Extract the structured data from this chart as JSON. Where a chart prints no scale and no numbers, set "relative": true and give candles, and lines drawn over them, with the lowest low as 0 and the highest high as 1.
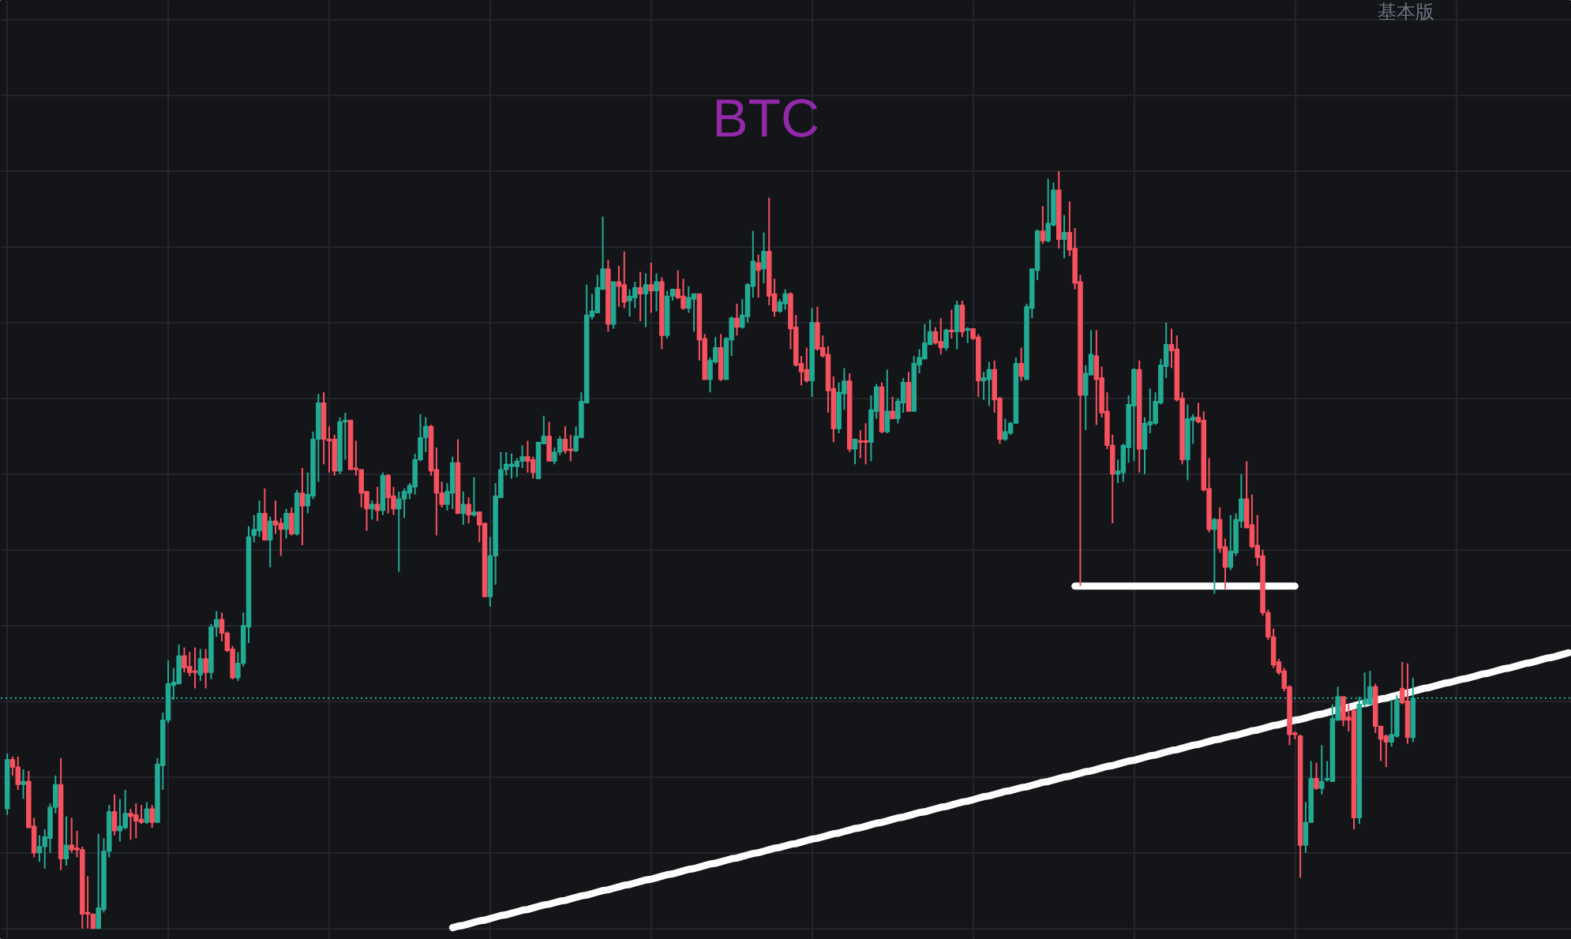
{
  "chart_data": {
    "type": "candlestick",
    "title": "BTC",
    "relative": true,
    "grid": true,
    "annotations": [
      "基本版"
    ],
    "categories": [
      null,
      null,
      null,
      null,
      null,
      null,
      null,
      null,
      null,
      null,
      null,
      null,
      null,
      null,
      null,
      null,
      null,
      null,
      null,
      null,
      null,
      null,
      null,
      null,
      null,
      null,
      null,
      null,
      null,
      null,
      null,
      null,
      null,
      null,
      null,
      null,
      null,
      null,
      null,
      null,
      null,
      null,
      null,
      null,
      null,
      null,
      null,
      null,
      null,
      null,
      null,
      null,
      null,
      null,
      null,
      null,
      null,
      null,
      null,
      null,
      null,
      null,
      null,
      null,
      null,
      null,
      null,
      null,
      null,
      null,
      null,
      null,
      null,
      null,
      null,
      null,
      null,
      null,
      null,
      null,
      null,
      null,
      null,
      null,
      null,
      null,
      null,
      null,
      null,
      null,
      null,
      null,
      null,
      null,
      null,
      null,
      null,
      null,
      null,
      null,
      null,
      null,
      null,
      null,
      null,
      null,
      null,
      null,
      null,
      null,
      null,
      null,
      null,
      null,
      null,
      null,
      null,
      null,
      null,
      null,
      null,
      null,
      null,
      null,
      null,
      null,
      null,
      null,
      null,
      null,
      null,
      null,
      null,
      null,
      null,
      null,
      null,
      null,
      null,
      null,
      null,
      null,
      null,
      null,
      null,
      null,
      null,
      null,
      null,
      null,
      null,
      null,
      null,
      null,
      null,
      null,
      null,
      null,
      null,
      null,
      null,
      null,
      null,
      null,
      null,
      null,
      null,
      null,
      null,
      null,
      null,
      null,
      null,
      null,
      null,
      null,
      null,
      null,
      null,
      null,
      null,
      null,
      null,
      null,
      null,
      null,
      null,
      null,
      null,
      null,
      null,
      null,
      null,
      null,
      null,
      null,
      null,
      null,
      null,
      null,
      null,
      null,
      null,
      null,
      null,
      null,
      null,
      null,
      null,
      null,
      null,
      null,
      null,
      null,
      null,
      null,
      null,
      null,
      null,
      null,
      null,
      null,
      null,
      null,
      null,
      null,
      null,
      null,
      null,
      null,
      null,
      null,
      null,
      null,
      null,
      null,
      null,
      null,
      null,
      null,
      null,
      null,
      null,
      null,
      null,
      null,
      null,
      null,
      null,
      null,
      null,
      null,
      null,
      null,
      null,
      null,
      null,
      null,
      null,
      null,
      null,
      null,
      null,
      null,
      null,
      null,
      null,
      null,
      null,
      null,
      null,
      null,
      null,
      null,
      null,
      null,
      null,
      null,
      null,
      null,
      null,
      null,
      null,
      null,
      null,
      null,
      null,
      null,
      null,
      null,
      null,
      null
    ],
    "ohlc": [
      [
        0.158,
        0.231,
        0.15,
        0.223
      ],
      [
        0.223,
        0.227,
        0.202,
        0.213
      ],
      [
        0.213,
        0.227,
        0.183,
        0.19
      ],
      [
        0.19,
        0.21,
        0.171,
        0.194
      ],
      [
        0.194,
        0.208,
        0.133,
        0.133
      ],
      [
        0.135,
        0.146,
        0.094,
        0.1
      ],
      [
        0.1,
        0.123,
        0.088,
        0.108
      ],
      [
        0.108,
        0.131,
        0.079,
        0.121
      ],
      [
        0.119,
        0.165,
        0.1,
        0.16
      ],
      [
        0.16,
        0.202,
        0.152,
        0.19
      ],
      [
        0.19,
        0.225,
        0.077,
        0.092
      ],
      [
        0.092,
        0.148,
        0.083,
        0.11
      ],
      [
        0.11,
        0.146,
        0.1,
        0.104
      ],
      [
        0.106,
        0.129,
        0.094,
        0.104
      ],
      [
        0.104,
        0.108,
        0,
        0.019
      ],
      [
        0.021,
        0.069,
        0,
        0.019
      ],
      [
        0.019,
        0.019,
        0,
        0
      ],
      [
        0,
        0.125,
        0,
        0.027
      ],
      [
        0.025,
        0.119,
        0.021,
        0.102
      ],
      [
        0.102,
        0.163,
        0.094,
        0.154
      ],
      [
        0.154,
        0.177,
        0.123,
        0.129
      ],
      [
        0.129,
        0.171,
        0.115,
        0.135
      ],
      [
        0.133,
        0.183,
        0.131,
        0.152
      ],
      [
        0.152,
        0.158,
        0.117,
        0.148
      ],
      [
        0.15,
        0.165,
        0.119,
        0.142
      ],
      [
        0.144,
        0.163,
        0.138,
        0.14
      ],
      [
        0.14,
        0.167,
        0.138,
        0.158
      ],
      [
        0.158,
        0.163,
        0.133,
        0.14
      ],
      [
        0.14,
        0.225,
        0.14,
        0.217
      ],
      [
        0.215,
        0.285,
        0.183,
        0.275
      ],
      [
        0.275,
        0.354,
        0.271,
        0.323
      ],
      [
        0.321,
        0.344,
        0.302,
        0.325
      ],
      [
        0.323,
        0.375,
        0.323,
        0.36
      ],
      [
        0.36,
        0.371,
        0.338,
        0.344
      ],
      [
        0.346,
        0.365,
        0.333,
        0.338
      ],
      [
        0.34,
        0.371,
        0.317,
        0.338
      ],
      [
        0.335,
        0.369,
        0.327,
        0.356
      ],
      [
        0.356,
        0.369,
        0.317,
        0.338
      ],
      [
        0.338,
        0.402,
        0.329,
        0.398
      ],
      [
        0.398,
        0.419,
        0.385,
        0.408
      ],
      [
        0.408,
        0.417,
        0.379,
        0.39
      ],
      [
        0.39,
        0.392,
        0.365,
        0.367
      ],
      [
        0.369,
        0.373,
        0.329,
        0.331
      ],
      [
        0.331,
        0.365,
        0.327,
        0.35
      ],
      [
        0.35,
        0.417,
        0.346,
        0.4
      ],
      [
        0.398,
        0.531,
        0.377,
        0.517
      ],
      [
        0.519,
        0.546,
        0.51,
        0.527
      ],
      [
        0.525,
        0.565,
        0.517,
        0.548
      ],
      [
        0.548,
        0.581,
        0.513,
        0.513
      ],
      [
        0.513,
        0.544,
        0.477,
        0.538
      ],
      [
        0.538,
        0.565,
        0.521,
        0.533
      ],
      [
        0.535,
        0.542,
        0.492,
        0.527
      ],
      [
        0.527,
        0.554,
        0.515,
        0.548
      ],
      [
        0.548,
        0.556,
        0.519,
        0.521
      ],
      [
        0.521,
        0.579,
        0.519,
        0.575
      ],
      [
        0.575,
        0.608,
        0.506,
        0.558
      ],
      [
        0.558,
        0.602,
        0.548,
        0.573
      ],
      [
        0.571,
        0.656,
        0.567,
        0.646
      ],
      [
        0.646,
        0.706,
        0.59,
        0.694
      ],
      [
        0.694,
        0.708,
        0.613,
        0.646
      ],
      [
        0.646,
        0.663,
        0.602,
        0.644
      ],
      [
        0.646,
        0.652,
        0.598,
        0.604
      ],
      [
        0.604,
        0.675,
        0.6,
        0.669
      ],
      [
        0.669,
        0.681,
        0.619,
        0.671
      ],
      [
        0.671,
        0.671,
        0.606,
        0.606
      ],
      [
        0.608,
        0.644,
        0.598,
        0.606
      ],
      [
        0.606,
        0.606,
        0.556,
        0.575
      ],
      [
        0.577,
        0.577,
        0.525,
        0.554
      ],
      [
        0.554,
        0.565,
        0.54,
        0.56
      ],
      [
        0.56,
        0.583,
        0.538,
        0.552
      ],
      [
        0.552,
        0.602,
        0.546,
        0.598
      ],
      [
        0.598,
        0.6,
        0.548,
        0.569
      ],
      [
        0.571,
        0.583,
        0.546,
        0.554
      ],
      [
        0.554,
        0.577,
        0.471,
        0.567
      ],
      [
        0.567,
        0.581,
        0.542,
        0.577
      ],
      [
        0.575,
        0.588,
        0.567,
        0.585
      ],
      [
        0.583,
        0.627,
        0.573,
        0.619
      ],
      [
        0.619,
        0.679,
        0.617,
        0.648
      ],
      [
        0.648,
        0.675,
        0.629,
        0.663
      ],
      [
        0.663,
        0.665,
        0.598,
        0.604
      ],
      [
        0.606,
        0.635,
        0.519,
        0.575
      ],
      [
        0.575,
        0.59,
        0.556,
        0.56
      ],
      [
        0.56,
        0.588,
        0.552,
        0.577
      ],
      [
        0.575,
        0.623,
        0.554,
        0.615
      ],
      [
        0.615,
        0.646,
        0.548,
        0.548
      ],
      [
        0.548,
        0.577,
        0.533,
        0.56
      ],
      [
        0.56,
        0.569,
        0.535,
        0.546
      ],
      [
        0.546,
        0.596,
        0.544,
        0.55
      ],
      [
        0.55,
        0.55,
        0.51,
        0.533
      ],
      [
        0.535,
        0.535,
        0.438,
        0.438
      ],
      [
        0.438,
        0.517,
        0.425,
        0.492
      ],
      [
        0.492,
        0.588,
        0.454,
        0.571
      ],
      [
        0.569,
        0.629,
        0.569,
        0.606
      ],
      [
        0.606,
        0.629,
        0.598,
        0.613
      ],
      [
        0.61,
        0.627,
        0.594,
        0.613
      ],
      [
        0.61,
        0.621,
        0.596,
        0.617
      ],
      [
        0.617,
        0.638,
        0.608,
        0.623
      ],
      [
        0.623,
        0.644,
        0.602,
        0.617
      ],
      [
        0.619,
        0.623,
        0.594,
        0.602
      ],
      [
        0.594,
        0.642,
        0.594,
        0.642
      ],
      [
        0.64,
        0.677,
        0.64,
        0.65
      ],
      [
        0.65,
        0.669,
        0.617,
        0.617
      ],
      [
        0.617,
        0.635,
        0.613,
        0.629
      ],
      [
        0.629,
        0.65,
        0.625,
        0.646
      ],
      [
        0.646,
        0.663,
        0.627,
        0.631
      ],
      [
        0.633,
        0.652,
        0.617,
        0.631
      ],
      [
        0.631,
        0.663,
        0.629,
        0.65
      ],
      [
        0.648,
        0.708,
        0.648,
        0.696
      ],
      [
        0.694,
        0.85,
        0.694,
        0.81
      ],
      [
        0.808,
        0.838,
        0.804,
        0.815
      ],
      [
        0.813,
        0.863,
        0.813,
        0.846
      ],
      [
        0.844,
        0.94,
        0.844,
        0.871
      ],
      [
        0.871,
        0.883,
        0.788,
        0.798
      ],
      [
        0.798,
        0.854,
        0.792,
        0.854
      ],
      [
        0.854,
        0.875,
        0.821,
        0.848
      ],
      [
        0.85,
        0.894,
        0.819,
        0.827
      ],
      [
        0.829,
        0.844,
        0.808,
        0.835
      ],
      [
        0.833,
        0.854,
        0.819,
        0.846
      ],
      [
        0.846,
        0.867,
        0.802,
        0.838
      ],
      [
        0.838,
        0.865,
        0.794,
        0.85
      ],
      [
        0.85,
        0.879,
        0.813,
        0.842
      ],
      [
        0.842,
        0.865,
        0.815,
        0.854
      ],
      [
        0.854,
        0.86,
        0.765,
        0.783
      ],
      [
        0.783,
        0.842,
        0.779,
        0.835
      ],
      [
        0.835,
        0.844,
        0.829,
        0.844
      ],
      [
        0.844,
        0.869,
        0.831,
        0.833
      ],
      [
        0.835,
        0.858,
        0.817,
        0.819
      ],
      [
        0.819,
        0.848,
        0.813,
        0.833
      ],
      [
        0.831,
        0.838,
        0.788,
        0.838
      ],
      [
        0.838,
        0.838,
        0.75,
        0.777
      ],
      [
        0.779,
        0.785,
        0.725,
        0.725
      ],
      [
        0.725,
        0.754,
        0.708,
        0.75
      ],
      [
        0.748,
        0.781,
        0.746,
        0.767
      ],
      [
        0.767,
        0.785,
        0.723,
        0.725
      ],
      [
        0.725,
        0.781,
        0.725,
        0.779
      ],
      [
        0.777,
        0.808,
        0.756,
        0.806
      ],
      [
        0.806,
        0.825,
        0.783,
        0.794
      ],
      [
        0.794,
        0.831,
        0.792,
        0.81
      ],
      [
        0.808,
        0.852,
        0.8,
        0.85
      ],
      [
        0.848,
        0.921,
        0.833,
        0.881
      ],
      [
        0.879,
        0.89,
        0.833,
        0.869
      ],
      [
        0.871,
        0.919,
        0.852,
        0.894
      ],
      [
        0.894,
        0.965,
        0.823,
        0.835
      ],
      [
        0.838,
        0.858,
        0.808,
        0.815
      ],
      [
        0.815,
        0.831,
        0.813,
        0.827
      ],
      [
        0.825,
        0.844,
        0.817,
        0.838
      ],
      [
        0.838,
        0.84,
        0.765,
        0.792
      ],
      [
        0.794,
        0.81,
        0.742,
        0.744
      ],
      [
        0.746,
        0.756,
        0.717,
        0.735
      ],
      [
        0.738,
        0.767,
        0.721,
        0.723
      ],
      [
        0.723,
        0.819,
        0.702,
        0.8
      ],
      [
        0.8,
        0.821,
        0.763,
        0.765
      ],
      [
        0.767,
        0.783,
        0.754,
        0.756
      ],
      [
        0.758,
        0.769,
        0.681,
        0.71
      ],
      [
        0.713,
        0.729,
        0.642,
        0.66
      ],
      [
        0.66,
        0.721,
        0.654,
        0.708
      ],
      [
        0.706,
        0.74,
        0.685,
        0.723
      ],
      [
        0.723,
        0.733,
        0.629,
        0.633
      ],
      [
        0.633,
        0.646,
        0.613,
        0.646
      ],
      [
        0.644,
        0.658,
        0.621,
        0.642
      ],
      [
        0.644,
        0.667,
        0.613,
        0.642
      ],
      [
        0.642,
        0.704,
        0.617,
        0.685
      ],
      [
        0.683,
        0.719,
        0.673,
        0.715
      ],
      [
        0.715,
        0.721,
        0.654,
        0.656
      ],
      [
        0.656,
        0.738,
        0.654,
        0.683
      ],
      [
        0.683,
        0.702,
        0.673,
        0.673
      ],
      [
        0.673,
        0.7,
        0.667,
        0.696
      ],
      [
        0.694,
        0.727,
        0.681,
        0.721
      ],
      [
        0.721,
        0.735,
        0.683,
        0.683
      ],
      [
        0.683,
        0.756,
        0.683,
        0.746
      ],
      [
        0.744,
        0.765,
        0.733,
        0.754
      ],
      [
        0.752,
        0.798,
        0.752,
        0.773
      ],
      [
        0.771,
        0.804,
        0.771,
        0.788
      ],
      [
        0.788,
        0.794,
        0.771,
        0.773
      ],
      [
        0.775,
        0.806,
        0.758,
        0.767
      ],
      [
        0.767,
        0.792,
        0.763,
        0.79
      ],
      [
        0.79,
        0.817,
        0.779,
        0.788
      ],
      [
        0.788,
        0.829,
        0.765,
        0.823
      ],
      [
        0.823,
        0.829,
        0.781,
        0.788
      ],
      [
        0.79,
        0.794,
        0.773,
        0.792
      ],
      [
        0.792,
        0.792,
        0.777,
        0.779
      ],
      [
        0.781,
        0.785,
        0.702,
        0.723
      ],
      [
        0.723,
        0.735,
        0.698,
        0.727
      ],
      [
        0.725,
        0.748,
        0.69,
        0.738
      ],
      [
        0.738,
        0.75,
        0.681,
        0.698
      ],
      [
        0.7,
        0.702,
        0.64,
        0.646
      ],
      [
        0.646,
        0.673,
        0.644,
        0.656
      ],
      [
        0.654,
        0.669,
        0.652,
        0.667
      ],
      [
        0.667,
        0.754,
        0.667,
        0.746
      ],
      [
        0.746,
        0.767,
        0.723,
        0.729
      ],
      [
        0.725,
        0.825,
        0.725,
        0.821
      ],
      [
        0.819,
        0.871,
        0.806,
        0.871
      ],
      [
        0.869,
        0.923,
        0.856,
        0.921
      ],
      [
        0.921,
        0.954,
        0.904,
        0.908
      ],
      [
        0.908,
        0.99,
        0.906,
        0.931
      ],
      [
        0.929,
        0.985,
        0.927,
        0.975
      ],
      [
        0.975,
        1,
        0.898,
        0.91
      ],
      [
        0.91,
        0.942,
        0.885,
        0.919
      ],
      [
        0.919,
        0.96,
        0.888,
        0.896
      ],
      [
        0.898,
        0.925,
        0.844,
        0.852
      ],
      [
        0.854,
        0.863,
        0.452,
        0.704
      ],
      [
        0.704,
        0.744,
        0.658,
        0.733
      ],
      [
        0.731,
        0.79,
        0.731,
        0.758
      ],
      [
        0.756,
        0.79,
        0.665,
        0.725
      ],
      [
        0.727,
        0.742,
        0.675,
        0.681
      ],
      [
        0.683,
        0.708,
        0.633,
        0.638
      ],
      [
        0.638,
        0.652,
        0.535,
        0.6
      ],
      [
        0.6,
        0.619,
        0.588,
        0.604
      ],
      [
        0.602,
        0.64,
        0.59,
        0.638
      ],
      [
        0.635,
        0.704,
        0.615,
        0.692
      ],
      [
        0.69,
        0.74,
        0.617,
        0.738
      ],
      [
        0.738,
        0.75,
        0.602,
        0.633
      ],
      [
        0.633,
        0.675,
        0.6,
        0.667
      ],
      [
        0.665,
        0.713,
        0.654,
        0.669
      ],
      [
        0.667,
        0.708,
        0.665,
        0.696
      ],
      [
        0.694,
        0.752,
        0.692,
        0.744
      ],
      [
        0.742,
        0.8,
        0.727,
        0.771
      ],
      [
        0.771,
        0.792,
        0.74,
        0.763
      ],
      [
        0.765,
        0.783,
        0.696,
        0.698
      ],
      [
        0.7,
        0.708,
        0.613,
        0.619
      ],
      [
        0.619,
        0.692,
        0.592,
        0.673
      ],
      [
        0.671,
        0.679,
        0.64,
        0.675
      ],
      [
        0.675,
        0.694,
        0.667,
        0.669
      ],
      [
        0.671,
        0.683,
        0.577,
        0.579
      ],
      [
        0.581,
        0.621,
        0.523,
        0.527
      ],
      [
        0.527,
        0.542,
        0.442,
        0.54
      ],
      [
        0.54,
        0.556,
        0.496,
        0.502
      ],
      [
        0.504,
        0.515,
        0.448,
        0.477
      ],
      [
        0.477,
        0.546,
        0.473,
        0.498
      ],
      [
        0.496,
        0.548,
        0.492,
        0.54
      ],
      [
        0.538,
        0.6,
        0.529,
        0.567
      ],
      [
        0.567,
        0.617,
        0.529,
        0.529
      ],
      [
        0.533,
        0.573,
        0.502,
        0.504
      ],
      [
        0.506,
        0.546,
        0.479,
        0.49
      ],
      [
        0.492,
        0.5,
        0.413,
        0.417
      ],
      [
        0.417,
        0.421,
        0.381,
        0.385
      ],
      [
        0.385,
        0.396,
        0.344,
        0.348
      ],
      [
        0.352,
        0.356,
        0.335,
        0.338
      ],
      [
        0.34,
        0.344,
        0.313,
        0.317
      ],
      [
        0.319,
        0.321,
        0.242,
        0.256
      ],
      [
        0.258,
        0.26,
        0.25,
        0.256
      ],
      [
        0.254,
        0.256,
        0.067,
        0.11
      ],
      [
        0.11,
        0.167,
        0.1,
        0.14
      ],
      [
        0.14,
        0.221,
        0.14,
        0.198
      ],
      [
        0.198,
        0.219,
        0.183,
        0.185
      ],
      [
        0.185,
        0.242,
        0.177,
        0.194
      ],
      [
        0.196,
        0.221,
        0.194,
        0.198
      ],
      [
        0.194,
        0.296,
        0.194,
        0.277
      ],
      [
        0.275,
        0.319,
        0.275,
        0.306
      ],
      [
        0.306,
        0.306,
        0.267,
        0.275
      ],
      [
        0.279,
        0.296,
        0.26,
        0.275
      ],
      [
        0.288,
        0.288,
        0.131,
        0.146
      ],
      [
        0.146,
        0.306,
        0.138,
        0.296
      ],
      [
        0.296,
        0.338,
        0.292,
        0.302
      ],
      [
        0.296,
        0.34,
        0.296,
        0.319
      ],
      [
        0.319,
        0.323,
        0.258,
        0.267
      ],
      [
        0.267,
        0.267,
        0.221,
        0.25
      ],
      [
        0.254,
        0.256,
        0.213,
        0.246
      ],
      [
        0.246,
        0.302,
        0.24,
        0.256
      ],
      [
        0.254,
        0.308,
        0.252,
        0.302
      ],
      [
        0.317,
        0.352,
        0.296,
        0.298
      ],
      [
        0.3,
        0.35,
        0.244,
        0.252
      ],
      [
        0.252,
        0.331,
        0.246,
        0.304
      ],
      null,
      null,
      null,
      null,
      null,
      null,
      null,
      null,
      null,
      null,
      null,
      null,
      null,
      null,
      null,
      null,
      null,
      null,
      null,
      null,
      null,
      null,
      null,
      null,
      null,
      null,
      null,
      null,
      null
    ],
    "colors": [
      "#22ab94",
      "#f7525f",
      "#f7525f",
      "#22ab94",
      "#f7525f",
      "#f7525f",
      "#22ab94",
      "#22ab94",
      "#22ab94",
      "#22ab94",
      "#f7525f",
      "#22ab94",
      "#f7525f",
      "#f7525f",
      "#f7525f",
      "#f7525f",
      "#f7525f",
      "#22ab94",
      "#22ab94",
      "#22ab94",
      "#f7525f",
      "#22ab94",
      "#22ab94",
      "#f7525f",
      "#f7525f",
      "#f7525f",
      "#22ab94",
      "#f7525f",
      "#22ab94",
      "#22ab94",
      "#22ab94",
      "#22ab94",
      "#22ab94",
      "#f7525f",
      "#f7525f",
      "#f7525f",
      "#22ab94",
      "#f7525f",
      "#22ab94",
      "#22ab94",
      "#f7525f",
      "#f7525f",
      "#f7525f",
      "#22ab94",
      "#22ab94",
      "#22ab94",
      "#22ab94",
      "#22ab94",
      "#f7525f",
      "#22ab94",
      "#f7525f",
      "#f7525f",
      "#22ab94",
      "#f7525f",
      "#22ab94",
      "#f7525f",
      "#22ab94",
      "#22ab94",
      "#22ab94",
      "#f7525f",
      "#f7525f",
      "#f7525f",
      "#22ab94",
      "#22ab94",
      "#f7525f",
      "#f7525f",
      "#f7525f",
      "#f7525f",
      "#22ab94",
      "#f7525f",
      "#22ab94",
      "#f7525f",
      "#f7525f",
      "#22ab94",
      "#22ab94",
      "#22ab94",
      "#22ab94",
      "#22ab94",
      "#22ab94",
      "#f7525f",
      "#f7525f",
      "#f7525f",
      "#22ab94",
      "#22ab94",
      "#f7525f",
      "#22ab94",
      "#f7525f",
      "#22ab94",
      "#f7525f",
      "#f7525f",
      "#22ab94",
      "#22ab94",
      "#22ab94",
      "#22ab94",
      "#22ab94",
      "#22ab94",
      "#22ab94",
      "#f7525f",
      "#f7525f",
      "#22ab94",
      "#22ab94",
      "#f7525f",
      "#22ab94",
      "#22ab94",
      "#f7525f",
      "#f7525f",
      "#22ab94",
      "#22ab94",
      "#22ab94",
      "#22ab94",
      "#22ab94",
      "#22ab94",
      "#f7525f",
      "#22ab94",
      "#f7525f",
      "#f7525f",
      "#22ab94",
      "#22ab94",
      "#f7525f",
      "#22ab94",
      "#f7525f",
      "#22ab94",
      "#f7525f",
      "#22ab94",
      "#22ab94",
      "#f7525f",
      "#f7525f",
      "#22ab94",
      "#22ab94",
      "#f7525f",
      "#f7525f",
      "#22ab94",
      "#22ab94",
      "#f7525f",
      "#22ab94",
      "#22ab94",
      "#f7525f",
      "#22ab94",
      "#22ab94",
      "#22ab94",
      "#f7525f",
      "#22ab94",
      "#f7525f",
      "#f7525f",
      "#22ab94",
      "#22ab94",
      "#f7525f",
      "#f7525f",
      "#f7525f",
      "#f7525f",
      "#22ab94",
      "#f7525f",
      "#f7525f",
      "#f7525f",
      "#f7525f",
      "#22ab94",
      "#22ab94",
      "#f7525f",
      "#22ab94",
      "#f7525f",
      "#f7525f",
      "#22ab94",
      "#22ab94",
      "#f7525f",
      "#22ab94",
      "#f7525f",
      "#22ab94",
      "#22ab94",
      "#f7525f",
      "#22ab94",
      "#22ab94",
      "#22ab94",
      "#22ab94",
      "#f7525f",
      "#f7525f",
      "#22ab94",
      "#f7525f",
      "#22ab94",
      "#f7525f",
      "#22ab94",
      "#f7525f",
      "#f7525f",
      "#22ab94",
      "#22ab94",
      "#f7525f",
      "#f7525f",
      "#22ab94",
      "#22ab94",
      "#22ab94",
      "#f7525f",
      "#22ab94",
      "#22ab94",
      "#22ab94",
      "#f7525f",
      "#22ab94",
      "#22ab94",
      "#f7525f",
      "#22ab94",
      "#f7525f",
      "#f7525f",
      "#f7525f",
      "#22ab94",
      "#22ab94",
      "#f7525f",
      "#f7525f",
      "#f7525f",
      "#f7525f",
      "#22ab94",
      "#22ab94",
      "#22ab94",
      "#22ab94",
      "#f7525f",
      "#22ab94",
      "#22ab94",
      "#22ab94",
      "#22ab94",
      "#22ab94",
      "#f7525f",
      "#f7525f",
      "#f7525f",
      "#22ab94",
      "#22ab94",
      "#f7525f",
      "#f7525f",
      "#f7525f",
      "#22ab94",
      "#f7525f",
      "#f7525f",
      "#22ab94",
      "#22ab94",
      "#22ab94",
      "#f7525f",
      "#f7525f",
      "#f7525f",
      "#f7525f",
      "#f7525f",
      "#f7525f",
      "#f7525f",
      "#f7525f",
      "#f7525f",
      "#f7525f",
      "#f7525f",
      "#22ab94",
      "#22ab94",
      "#f7525f",
      "#22ab94",
      "#22ab94",
      "#22ab94",
      "#22ab94",
      "#f7525f",
      "#f7525f",
      "#f7525f",
      "#22ab94",
      "#22ab94",
      "#22ab94",
      "#f7525f",
      "#f7525f",
      "#f7525f",
      "#22ab94",
      "#22ab94",
      "#f7525f",
      "#f7525f",
      "#22ab94",
      null,
      null,
      null,
      null,
      null,
      null,
      null,
      null,
      null,
      null,
      null,
      null,
      null,
      null,
      null,
      null,
      null,
      null,
      null,
      null,
      null,
      null,
      null,
      null,
      null,
      null,
      null,
      null,
      null
    ],
    "series": [
      {
        "type": "line",
        "color": "#ffffff",
        "values": [
          null,
          null,
          null,
          null,
          null,
          null,
          null,
          null,
          null,
          null,
          null,
          null,
          null,
          null,
          null,
          null,
          null,
          null,
          null,
          null,
          null,
          null,
          null,
          null,
          null,
          null,
          null,
          null,
          null,
          null,
          null,
          null,
          null,
          null,
          null,
          null,
          null,
          null,
          null,
          null,
          null,
          null,
          null,
          null,
          null,
          null,
          null,
          null,
          null,
          null,
          null,
          null,
          null,
          null,
          null,
          null,
          null,
          null,
          null,
          null,
          null,
          null,
          null,
          null,
          null,
          null,
          null,
          null,
          null,
          null,
          null,
          null,
          null,
          null,
          null,
          null,
          null,
          null,
          null,
          null,
          null,
          null,
          null,
          0.001,
          0.003,
          0.004,
          0.006,
          0.008,
          0.01,
          0.011,
          0.013,
          0.015,
          0.017,
          0.018,
          0.02,
          0.022,
          0.024,
          0.025,
          0.027,
          0.029,
          0.031,
          0.032,
          0.034,
          0.036,
          0.037,
          0.039,
          0.041,
          0.043,
          0.044,
          0.046,
          0.048,
          0.05,
          0.051,
          0.053,
          0.055,
          0.057,
          0.058,
          0.06,
          0.062,
          0.064,
          0.065,
          0.067,
          0.069,
          0.071,
          0.072,
          0.074,
          0.076,
          0.078,
          0.079,
          0.081,
          0.083,
          0.085,
          0.086,
          0.088,
          0.09,
          0.092,
          0.093,
          0.095,
          0.097,
          0.099,
          0.1,
          0.102,
          0.104,
          0.106,
          0.107,
          0.109,
          0.111,
          0.112,
          0.114,
          0.116,
          0.118,
          0.119,
          0.121,
          0.123,
          0.125,
          0.126,
          0.128,
          0.13,
          0.132,
          0.133,
          0.135,
          0.137,
          0.139,
          0.14,
          0.142,
          0.144,
          0.146,
          0.147,
          0.149,
          0.151,
          0.153,
          0.154,
          0.156,
          0.158,
          0.16,
          0.161,
          0.163,
          0.165,
          0.167,
          0.168,
          0.17,
          0.172,
          0.174,
          0.175,
          0.177,
          0.179,
          0.181,
          0.182,
          0.184,
          0.186,
          0.187,
          0.189,
          0.191,
          0.193,
          0.194,
          0.196,
          0.198,
          0.2,
          0.201,
          0.203,
          0.205,
          0.207,
          0.208,
          0.21,
          0.212,
          0.214,
          0.215,
          0.217,
          0.219,
          0.221,
          0.222,
          0.224,
          0.226,
          0.228,
          0.229,
          0.231,
          0.233,
          0.235,
          0.236,
          0.238,
          0.24,
          0.242,
          0.243,
          0.245,
          0.247,
          0.249,
          0.25,
          0.252,
          0.254,
          0.255,
          0.257,
          0.259,
          0.261,
          0.262,
          0.264,
          0.266,
          0.268,
          0.269,
          0.271,
          0.273,
          0.275,
          0.276,
          0.278,
          0.28,
          0.282,
          0.283,
          0.285,
          0.287,
          0.289,
          0.29,
          0.292,
          0.294,
          0.296,
          0.297,
          0.299,
          0.301,
          0.303,
          0.304,
          0.306,
          0.308,
          0.31,
          0.311,
          0.313,
          0.315,
          0.317,
          0.318,
          0.32,
          0.322,
          0.324,
          0.325,
          0.327,
          0.329,
          0.33,
          0.332,
          0.334,
          0.336,
          0.337,
          0.339,
          0.341,
          0.343,
          0.344,
          0.346,
          0.348,
          0.35,
          0.351,
          0.353,
          0.355,
          0.357,
          0.358,
          0.36,
          0.362,
          0.364
        ]
      },
      {
        "type": "line",
        "color": "#ffffff",
        "values": [
          null,
          null,
          null,
          null,
          null,
          null,
          null,
          null,
          null,
          null,
          null,
          null,
          null,
          null,
          null,
          null,
          null,
          null,
          null,
          null,
          null,
          null,
          null,
          null,
          null,
          null,
          null,
          null,
          null,
          null,
          null,
          null,
          null,
          null,
          null,
          null,
          null,
          null,
          null,
          null,
          null,
          null,
          null,
          null,
          null,
          null,
          null,
          null,
          null,
          null,
          null,
          null,
          null,
          null,
          null,
          null,
          null,
          null,
          null,
          null,
          null,
          null,
          null,
          null,
          null,
          null,
          null,
          null,
          null,
          null,
          null,
          null,
          null,
          null,
          null,
          null,
          null,
          null,
          null,
          null,
          null,
          null,
          null,
          null,
          null,
          null,
          null,
          null,
          null,
          null,
          null,
          null,
          null,
          null,
          null,
          null,
          null,
          null,
          null,
          null,
          null,
          null,
          null,
          null,
          null,
          null,
          null,
          null,
          null,
          null,
          null,
          null,
          null,
          null,
          null,
          null,
          null,
          null,
          null,
          null,
          null,
          null,
          null,
          null,
          null,
          null,
          null,
          null,
          null,
          null,
          null,
          null,
          null,
          null,
          null,
          null,
          null,
          null,
          null,
          null,
          null,
          null,
          null,
          null,
          null,
          null,
          null,
          null,
          null,
          null,
          null,
          null,
          null,
          null,
          null,
          null,
          null,
          null,
          null,
          null,
          null,
          null,
          null,
          null,
          null,
          null,
          null,
          null,
          null,
          null,
          null,
          null,
          null,
          null,
          null,
          null,
          null,
          null,
          null,
          null,
          null,
          null,
          null,
          null,
          null,
          null,
          null,
          null,
          null,
          null,
          null,
          null,
          null,
          null,
          null,
          null,
          null,
          null,
          null,
          0.452,
          0.452,
          0.452,
          0.452,
          0.452,
          0.452,
          0.452,
          0.452,
          0.452,
          0.452,
          0.452,
          0.452,
          0.452,
          0.452,
          0.452,
          0.452,
          0.452,
          0.452,
          0.452,
          0.452,
          0.452,
          0.452,
          0.452,
          0.452,
          0.452,
          0.452,
          0.452,
          0.452,
          0.452,
          0.452,
          0.452,
          0.452,
          0.452,
          0.452,
          0.452,
          0.452,
          0.452,
          0.452,
          0.452,
          0.452,
          0.452,
          0.452,
          null,
          null,
          null,
          null,
          null,
          null,
          null,
          null,
          null,
          null,
          null,
          null,
          null,
          null,
          null,
          null,
          null,
          null,
          null,
          null,
          null,
          null,
          null,
          null,
          null,
          null,
          null,
          null,
          null,
          null,
          null,
          null,
          null,
          null,
          null,
          null,
          null,
          null,
          null,
          null,
          null,
          null,
          null,
          null,
          null,
          null,
          null,
          null,
          null,
          null,
          null
        ]
      }
    ],
    "ref_lines": [
      {
        "axis": "y",
        "value": 0.304,
        "color": "#22ab94",
        "line_style": "dotted"
      }
    ]
  }
}
